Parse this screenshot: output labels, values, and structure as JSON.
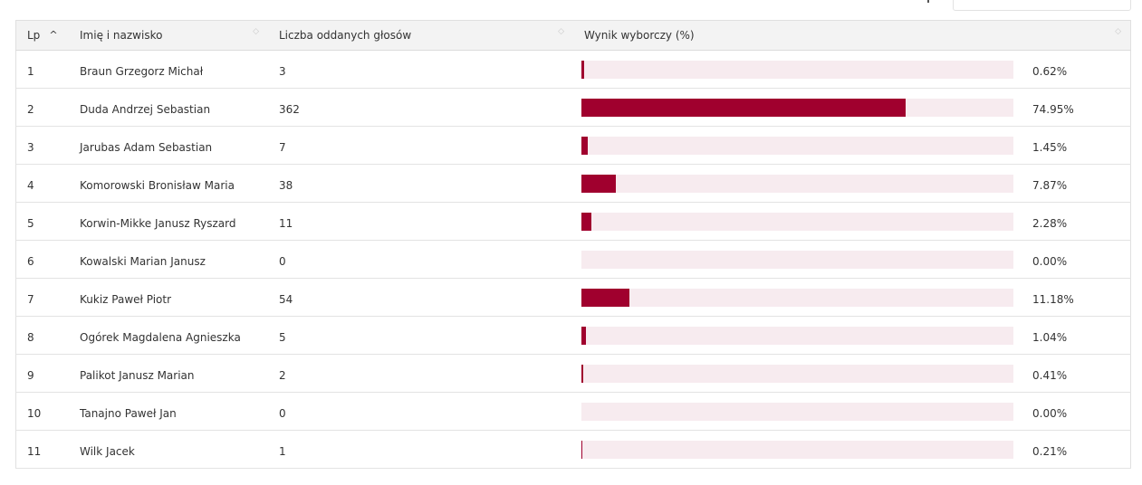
{
  "search": {
    "value": ""
  },
  "table": {
    "headers": {
      "lp": "Lp",
      "name": "Imię i nazwisko",
      "votes": "Liczba oddanych głosów",
      "result": "Wynik wyborczy (%)"
    },
    "colors": {
      "bar": "#a0002e",
      "track": "#f7ebef"
    },
    "rows": [
      {
        "lp": "1",
        "name": "Braun Grzegorz Michał",
        "votes": "3",
        "pct": "0.62%",
        "value": 0.62
      },
      {
        "lp": "2",
        "name": "Duda Andrzej Sebastian",
        "votes": "362",
        "pct": "74.95%",
        "value": 74.95
      },
      {
        "lp": "3",
        "name": "Jarubas Adam Sebastian",
        "votes": "7",
        "pct": "1.45%",
        "value": 1.45
      },
      {
        "lp": "4",
        "name": "Komorowski Bronisław Maria",
        "votes": "38",
        "pct": "7.87%",
        "value": 7.87
      },
      {
        "lp": "5",
        "name": "Korwin-Mikke Janusz Ryszard",
        "votes": "11",
        "pct": "2.28%",
        "value": 2.28
      },
      {
        "lp": "6",
        "name": "Kowalski Marian Janusz",
        "votes": "0",
        "pct": "0.00%",
        "value": 0
      },
      {
        "lp": "7",
        "name": "Kukiz Paweł Piotr",
        "votes": "54",
        "pct": "11.18%",
        "value": 11.18
      },
      {
        "lp": "8",
        "name": "Ogórek Magdalena Agnieszka",
        "votes": "5",
        "pct": "1.04%",
        "value": 1.04
      },
      {
        "lp": "9",
        "name": "Palikot Janusz Marian",
        "votes": "2",
        "pct": "0.41%",
        "value": 0.41
      },
      {
        "lp": "10",
        "name": "Tanajno Paweł Jan",
        "votes": "0",
        "pct": "0.00%",
        "value": 0
      },
      {
        "lp": "11",
        "name": "Wilk Jacek",
        "votes": "1",
        "pct": "0.21%",
        "value": 0.21
      }
    ]
  }
}
